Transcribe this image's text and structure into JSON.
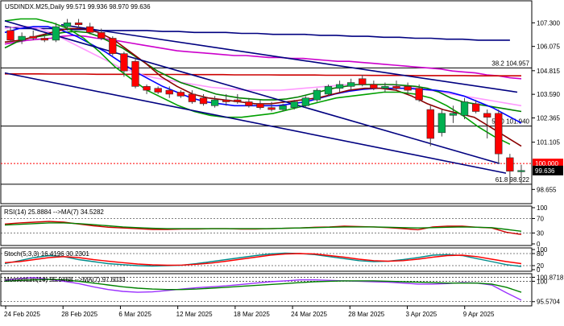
{
  "chart_data": {
    "type": "candlestick",
    "title": "USDINDX.M25,Daily  99.571 99.936 98.970 99.636",
    "price_axis": {
      "ylim": [
        98.0,
        108.4
      ],
      "ticks": [
        "107.300",
        "106.075",
        "104.815",
        "103.590",
        "102.365",
        "101.105",
        "98.655"
      ]
    },
    "price_tags": [
      {
        "label": "100.000",
        "value": 100.0,
        "color": "#ff0000",
        "text_color": "#ffffff"
      },
      {
        "label": "99.636",
        "value": 99.636,
        "color": "#000000",
        "text_color": "#ffffff"
      }
    ],
    "fib_levels": [
      {
        "label": "38.2 104.957",
        "value": 104.957
      },
      {
        "label": "50.0 101.940",
        "value": 101.94
      },
      {
        "label": "61.8 98.922",
        "value": 98.922
      }
    ],
    "colors": {
      "up": "#00b050",
      "down": "#ff0000"
    },
    "candles": [
      {
        "o": 106.9,
        "h": 107.1,
        "l": 106.3,
        "c": 106.4
      },
      {
        "o": 106.4,
        "h": 106.8,
        "l": 106.2,
        "c": 106.6
      },
      {
        "o": 106.6,
        "h": 106.9,
        "l": 106.4,
        "c": 106.5
      },
      {
        "o": 106.5,
        "h": 106.7,
        "l": 106.3,
        "c": 106.4
      },
      {
        "o": 106.4,
        "h": 107.3,
        "l": 106.3,
        "c": 107.1
      },
      {
        "o": 107.1,
        "h": 107.5,
        "l": 106.9,
        "c": 107.3
      },
      {
        "o": 107.3,
        "h": 107.5,
        "l": 107.0,
        "c": 107.2
      },
      {
        "o": 107.1,
        "h": 107.3,
        "l": 106.7,
        "c": 106.8
      },
      {
        "o": 106.8,
        "h": 107.0,
        "l": 106.4,
        "c": 106.5
      },
      {
        "o": 106.5,
        "h": 106.6,
        "l": 105.6,
        "c": 105.7
      },
      {
        "o": 105.7,
        "h": 105.8,
        "l": 104.5,
        "c": 104.8
      },
      {
        "o": 105.3,
        "h": 105.5,
        "l": 103.9,
        "c": 104.0
      },
      {
        "o": 104.0,
        "h": 104.1,
        "l": 103.6,
        "c": 103.8
      },
      {
        "o": 103.9,
        "h": 104.0,
        "l": 103.6,
        "c": 103.7
      },
      {
        "o": 103.8,
        "h": 104.0,
        "l": 103.4,
        "c": 103.6
      },
      {
        "o": 103.7,
        "h": 103.8,
        "l": 103.4,
        "c": 103.5
      },
      {
        "o": 103.6,
        "h": 103.8,
        "l": 103.1,
        "c": 103.2
      },
      {
        "o": 103.4,
        "h": 103.6,
        "l": 103.0,
        "c": 103.1
      },
      {
        "o": 103.0,
        "h": 103.5,
        "l": 102.9,
        "c": 103.3
      },
      {
        "o": 103.3,
        "h": 103.6,
        "l": 103.0,
        "c": 103.2
      },
      {
        "o": 103.3,
        "h": 103.6,
        "l": 103.1,
        "c": 103.2
      },
      {
        "o": 103.2,
        "h": 103.4,
        "l": 102.9,
        "c": 103.0
      },
      {
        "o": 103.1,
        "h": 103.3,
        "l": 102.8,
        "c": 102.9
      },
      {
        "o": 102.9,
        "h": 103.2,
        "l": 102.7,
        "c": 102.8
      },
      {
        "o": 102.8,
        "h": 103.1,
        "l": 102.7,
        "c": 103.0
      },
      {
        "o": 102.9,
        "h": 103.3,
        "l": 102.8,
        "c": 103.2
      },
      {
        "o": 103.0,
        "h": 103.5,
        "l": 102.9,
        "c": 103.4
      },
      {
        "o": 103.3,
        "h": 103.9,
        "l": 103.2,
        "c": 103.8
      },
      {
        "o": 103.6,
        "h": 104.1,
        "l": 103.5,
        "c": 104.0
      },
      {
        "o": 103.9,
        "h": 104.3,
        "l": 103.7,
        "c": 104.1
      },
      {
        "o": 104.0,
        "h": 104.4,
        "l": 103.8,
        "c": 104.2
      },
      {
        "o": 104.4,
        "h": 104.6,
        "l": 104.0,
        "c": 104.1
      },
      {
        "o": 104.1,
        "h": 104.3,
        "l": 103.8,
        "c": 103.9
      },
      {
        "o": 103.9,
        "h": 104.2,
        "l": 103.7,
        "c": 104.0
      },
      {
        "o": 104.0,
        "h": 104.3,
        "l": 103.8,
        "c": 103.9
      },
      {
        "o": 104.0,
        "h": 104.2,
        "l": 103.6,
        "c": 103.8
      },
      {
        "o": 103.9,
        "h": 104.1,
        "l": 103.2,
        "c": 103.3
      },
      {
        "o": 102.8,
        "h": 103.0,
        "l": 100.9,
        "c": 101.3
      },
      {
        "o": 101.6,
        "h": 102.8,
        "l": 101.4,
        "c": 102.6
      },
      {
        "o": 102.5,
        "h": 103.0,
        "l": 102.1,
        "c": 102.6
      },
      {
        "o": 102.5,
        "h": 103.4,
        "l": 102.3,
        "c": 103.2
      },
      {
        "o": 103.1,
        "h": 103.3,
        "l": 102.6,
        "c": 102.7
      },
      {
        "o": 102.6,
        "h": 102.8,
        "l": 101.3,
        "c": 102.4
      },
      {
        "o": 102.6,
        "h": 102.8,
        "l": 100.0,
        "c": 100.5
      },
      {
        "o": 100.3,
        "h": 100.5,
        "l": 98.9,
        "c": 99.6
      },
      {
        "o": 99.571,
        "h": 99.936,
        "l": 98.97,
        "c": 99.636
      }
    ],
    "x_ticks": [
      "24 Feb 2025",
      "28 Feb 2025",
      "6 Mar 2025",
      "12 Mar 2025",
      "18 Mar 2025",
      "24 Mar 2025",
      "28 Mar 2025",
      "3 Apr 2025",
      "9 Apr 2025"
    ],
    "overlays": [
      {
        "color": "#000080",
        "values": [
          107.1,
          107.0,
          107.0,
          107.0,
          106.95,
          106.95,
          106.9,
          106.9,
          106.9,
          106.9,
          106.85,
          106.85,
          106.8,
          106.8,
          106.8,
          106.75,
          106.75,
          106.7,
          106.7,
          106.7,
          106.65,
          106.65,
          106.6,
          106.6,
          106.55,
          106.55,
          106.5,
          106.5,
          106.45,
          106.45,
          106.4,
          106.4,
          106.4
        ]
      },
      {
        "color": "#cc00cc",
        "values": [
          106.2,
          106.3,
          106.4,
          106.45,
          106.5,
          106.6,
          106.65,
          106.6,
          106.5,
          106.45,
          106.35,
          106.25,
          106.15,
          106.05,
          105.95,
          105.85,
          105.8,
          105.75,
          105.7,
          105.65,
          105.6,
          105.6,
          105.55,
          105.5,
          105.5,
          105.45,
          105.45,
          105.4,
          105.35,
          105.3,
          105.3,
          105.25,
          105.2,
          105.15,
          105.1,
          105.05,
          105.0,
          104.95,
          104.9,
          104.8,
          104.75,
          104.7,
          104.6,
          104.55,
          104.45,
          104.4
        ]
      },
      {
        "color": "#cc0000",
        "values": [
          104.65,
          104.65,
          104.65,
          104.65,
          104.64,
          104.64,
          104.64,
          104.64,
          104.63,
          104.63,
          104.63,
          104.63,
          104.62,
          104.62,
          104.62,
          104.62,
          104.61,
          104.61,
          104.61,
          104.61,
          104.6,
          104.6,
          104.6,
          104.6,
          104.59,
          104.59,
          104.59,
          104.59,
          104.58,
          104.58,
          104.58,
          104.58,
          104.57,
          104.57,
          104.57,
          104.57,
          104.56,
          104.56,
          104.56,
          104.56,
          104.56,
          104.55,
          104.55,
          104.55,
          104.55,
          104.55
        ]
      },
      {
        "color": "#ff99ff",
        "values": [
          107.0,
          107.1,
          107.1,
          107.0,
          106.8,
          106.5,
          106.2,
          105.9,
          105.6,
          105.3,
          105.0,
          104.8,
          104.6,
          104.45,
          104.35,
          104.25,
          104.15,
          104.05,
          103.95,
          103.9,
          103.85,
          103.8,
          103.8,
          103.8,
          103.8,
          103.85,
          103.9,
          103.95,
          104.0,
          104.05,
          104.1,
          104.1,
          104.1,
          104.1,
          104.05,
          104.0,
          103.9,
          103.8,
          103.7,
          103.6,
          103.5,
          103.4,
          103.3,
          103.2,
          103.1,
          103.0
        ]
      },
      {
        "color": "#008000",
        "values": [
          106.0,
          106.3,
          106.5,
          106.6,
          106.7,
          106.8,
          106.85,
          106.8,
          106.6,
          106.3,
          106.0,
          105.6,
          105.2,
          104.8,
          104.5,
          104.2,
          104.0,
          103.8,
          103.6,
          103.5,
          103.4,
          103.35,
          103.3,
          103.3,
          103.35,
          103.45,
          103.6,
          103.75,
          103.9,
          104.0,
          104.1,
          104.1,
          104.1,
          104.1,
          104.05,
          104.0,
          103.9,
          103.7,
          103.4,
          103.2,
          103.1,
          103.0,
          102.9,
          102.8,
          102.7
        ]
      },
      {
        "color": "#0000ff",
        "values": [
          106.8,
          107.0,
          107.1,
          107.1,
          106.9,
          106.6,
          106.2,
          105.8,
          105.3,
          104.8,
          104.4,
          104.0,
          103.7,
          103.4,
          103.2,
          103.1,
          103.0,
          103.0,
          103.0,
          103.0,
          103.1,
          103.2,
          103.4,
          103.6,
          103.75,
          103.85,
          103.9,
          103.9,
          103.9,
          103.85,
          103.8,
          103.7,
          103.5,
          103.2,
          102.9,
          102.5,
          102.1
        ]
      },
      {
        "color": "#8b0000",
        "values": [
          106.3,
          106.4,
          106.6,
          106.8,
          107.0,
          107.0,
          106.8,
          106.4,
          105.8,
          105.2,
          104.5,
          104.0,
          103.6,
          103.4,
          103.3,
          103.2,
          103.1,
          103.1,
          103.2,
          103.3,
          103.4,
          103.6,
          103.8,
          103.9,
          103.9,
          103.8,
          103.5,
          103.1,
          102.8,
          102.6,
          102.4,
          101.9,
          101.4,
          100.9
        ]
      },
      {
        "color": "#00a000",
        "values": [
          107.4,
          107.5,
          107.5,
          107.3,
          107.0,
          106.5,
          105.8,
          105.0,
          104.4,
          103.8,
          103.4,
          103.0,
          102.7,
          102.5,
          102.4,
          102.4,
          102.5,
          102.6,
          102.8,
          103.0,
          103.2,
          103.4,
          103.5,
          103.6,
          103.7,
          103.7,
          103.6,
          103.4,
          103.0,
          102.5,
          101.9,
          101.4,
          101.0
        ]
      },
      {
        "color": "#000080",
        "values": [
          107.4,
          100.0
        ]
      },
      {
        "color": "#000080",
        "values": [
          104.7,
          99.5
        ]
      },
      {
        "color": "#000080",
        "values": [
          107.2,
          103.7
        ]
      }
    ],
    "indicators": [
      {
        "label": "RSI(14) 25.8884 -->MA(7) 34.5282",
        "ylim": [
          0,
          100
        ],
        "ticks": [
          "100",
          "70",
          "30",
          "0"
        ],
        "series": [
          {
            "color": "#cc0000",
            "values": [
              55,
              58,
              60,
              62,
              60,
              55,
              50,
              46,
              44,
              42,
              40,
              40,
              41,
              41,
              42,
              42,
              41,
              41,
              42,
              43,
              44,
              46,
              47,
              49,
              48,
              47,
              45,
              42,
              39,
              47,
              49,
              49,
              46,
              44,
              32,
              26
            ]
          },
          {
            "color": "#008000",
            "values": [
              52,
              54,
              56,
              58,
              58,
              56,
              53,
              50,
              47,
              45,
              43,
              42,
              42,
              42,
              42,
              42,
              42,
              42,
              42,
              43,
              44,
              45,
              46,
              47,
              47,
              47,
              46,
              45,
              44,
              45,
              46,
              47,
              46,
              45,
              40,
              35
            ]
          }
        ]
      },
      {
        "label": "Stoch(5,3,3) 16.4196 30.2301",
        "ylim": [
          0,
          100
        ],
        "ticks": [
          "100",
          "80",
          "20",
          "0"
        ],
        "series": [
          {
            "color": "#008b8b",
            "values": [
              30,
              45,
              60,
              70,
              65,
              50,
              40,
              30,
              25,
              20,
              18,
              20,
              22,
              30,
              40,
              50,
              60,
              70,
              78,
              82,
              80,
              75,
              65,
              55,
              45,
              40,
              42,
              50,
              60,
              72,
              75,
              70,
              55,
              40,
              25,
              16
            ]
          },
          {
            "color": "#ff0000",
            "values": [
              35,
              40,
              50,
              60,
              65,
              60,
              50,
              42,
              35,
              28,
              24,
              22,
              23,
              27,
              33,
              42,
              52,
              62,
              72,
              78,
              80,
              78,
              70,
              62,
              52,
              45,
              42,
              45,
              52,
              62,
              70,
              72,
              65,
              52,
              40,
              30
            ]
          }
        ]
      },
      {
        "label": "Momentum(14) 95.9468 -->MA(7) 97.6033",
        "ylim": [
          95.0,
          101.3
        ],
        "ticks": [
          "100.8718",
          "100",
          "95.5704"
        ],
        "series": [
          {
            "color": "#9b30ff",
            "values": [
              100.2,
              100.6,
              100.8,
              100.4,
              100.0,
              99.5,
              98.8,
              98.2,
              97.8,
              97.6,
              97.7,
              98.0,
              98.3,
              98.6,
              98.8,
              99.0,
              99.3,
              99.6,
              99.9,
              100.1,
              100.3,
              100.3,
              100.2,
              100.1,
              100.0,
              99.9,
              99.8,
              99.6,
              99.4,
              99.4,
              99.5,
              99.7,
              99.6,
              99.2,
              97.5,
              95.9
            ]
          },
          {
            "color": "#008000",
            "values": [
              100.0,
              100.2,
              100.3,
              100.4,
              100.3,
              100.0,
              99.6,
              99.2,
              98.8,
              98.5,
              98.3,
              98.2,
              98.2,
              98.3,
              98.5,
              98.7,
              98.9,
              99.1,
              99.3,
              99.5,
              99.7,
              99.9,
              100.0,
              100.1,
              100.1,
              100.1,
              100.0,
              99.9,
              99.8,
              99.7,
              99.6,
              99.6,
              99.6,
              99.4,
              98.7,
              97.6
            ]
          }
        ]
      }
    ]
  }
}
